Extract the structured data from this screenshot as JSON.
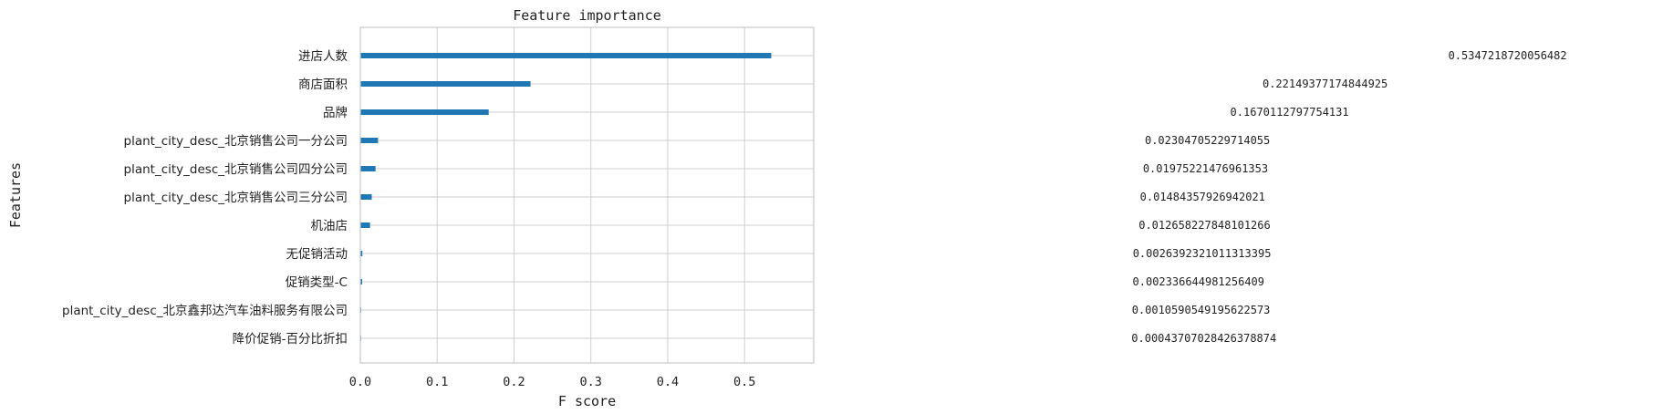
{
  "chart_data": {
    "type": "bar",
    "orientation": "horizontal",
    "title": "Feature importance",
    "xlabel": "F score",
    "ylabel": "Features",
    "xlim": [
      0,
      0.59
    ],
    "xticks": [
      0.0,
      0.1,
      0.2,
      0.3,
      0.4,
      0.5
    ],
    "xtick_labels": [
      "0.0",
      "0.1",
      "0.2",
      "0.3",
      "0.4",
      "0.5"
    ],
    "grid": true,
    "bar_color": "#1f77b4",
    "categories": [
      "进店人数",
      "商店面积",
      "品牌",
      "plant_city_desc_北京销售公司一分公司",
      "plant_city_desc_北京销售公司四分公司",
      "plant_city_desc_北京销售公司三分公司",
      "机油店",
      "无促销活动",
      "促销类型-C",
      "plant_city_desc_北京鑫邦达汽车油料服务有限公司",
      "降价促销-百分比折扣"
    ],
    "values": [
      0.5347218720056482,
      0.22149377174844925,
      0.1670112797754131,
      0.02304705229714055,
      0.01975221476961353,
      0.01484357926942021,
      0.012658227848101266,
      0.0026392321011313395,
      0.002336644981256409,
      0.0010590549195622573,
      0.00043707028426378874
    ],
    "value_labels": [
      "0.5347218720056482",
      "0.22149377174844925",
      "0.1670112797754131",
      "0.02304705229714055",
      "0.01975221476961353",
      "0.01484357926942021",
      "0.012658227848101266",
      "0.0026392321011313395",
      "0.002336644981256409",
      "0.0010590549195622573",
      "0.00043707028426378874"
    ]
  }
}
